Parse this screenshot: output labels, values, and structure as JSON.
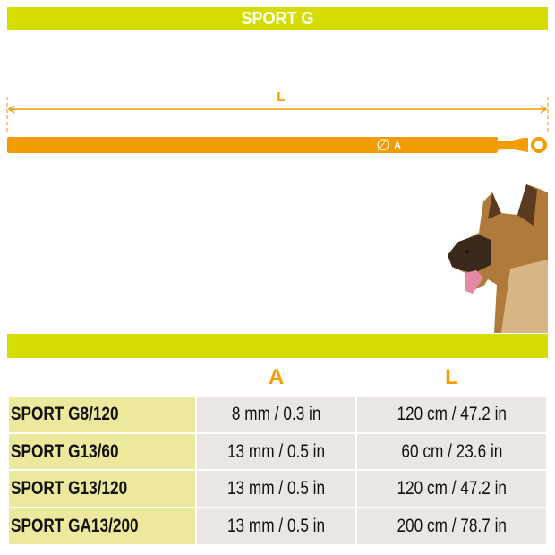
{
  "title": "SPORT G",
  "diagram": {
    "length_label": "L",
    "diameter_label": "A",
    "diameter_symbol": "∅",
    "leash_color": "#f39c00"
  },
  "accent": "#d4dc00",
  "table": {
    "headers": [
      "",
      "A",
      "L"
    ],
    "rows": [
      [
        "SPORT G8/120",
        "8 mm / 0.3 in",
        "120 cm / 47.2 in"
      ],
      [
        "SPORT G13/60",
        "13 mm / 0.5 in",
        "60 cm / 23.6 in"
      ],
      [
        "SPORT G13/120",
        "13 mm / 0.5 in",
        "120 cm / 47.2 in"
      ],
      [
        "SPORT GA13/200",
        "13 mm / 0.5 in",
        "200 cm / 78.7 in"
      ]
    ]
  }
}
